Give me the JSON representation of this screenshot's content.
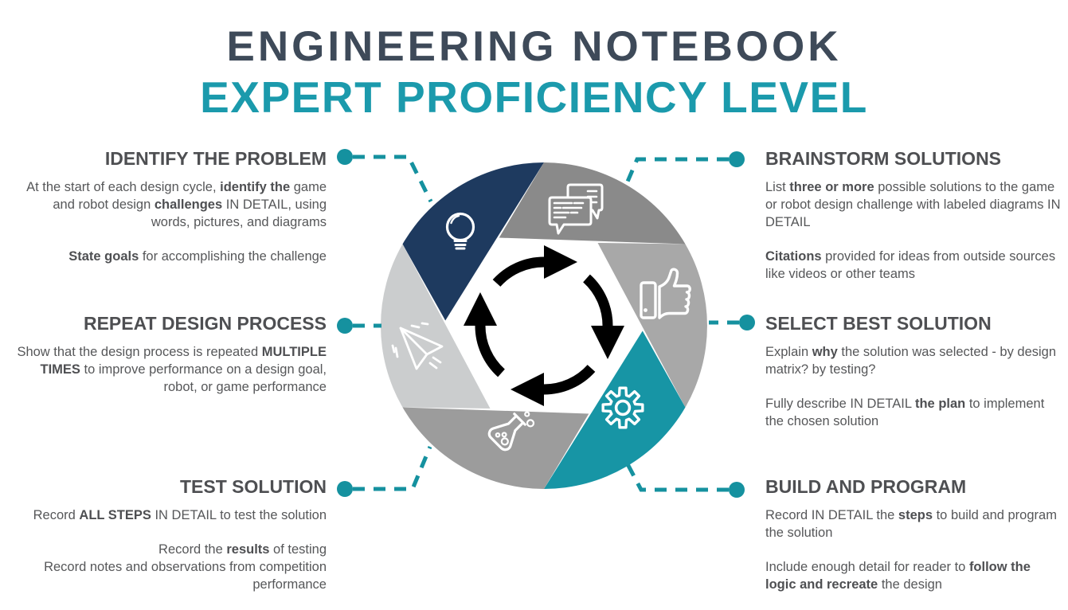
{
  "title": {
    "line1": "ENGINEERING NOTEBOOK",
    "line2": "EXPERT PROFICIENCY LEVEL"
  },
  "colors": {
    "title_primary": "#3e4a59",
    "title_accent": "#1b9aac",
    "heading_text": "#4e4f52",
    "body_text": "#565759",
    "connector_teal": "#15919f",
    "cycle_arrows": "#000000",
    "icon_stroke": "#ffffff",
    "blade_identify": "#1e3a5f",
    "blade_brainstorm": "#8a8a8a",
    "blade_select": "#a8a8a8",
    "blade_build": "#1795a5",
    "blade_test": "#9c9c9c",
    "blade_repeat": "#cbcdce"
  },
  "sections": [
    {
      "id": "identify-the-problem",
      "title": "IDENTIFY THE PROBLEM",
      "paragraphs": [
        [
          {
            "t": "At the start of each design cycle, "
          },
          {
            "t": "identify the",
            "b": true
          },
          {
            "t": " game and robot design "
          },
          {
            "t": "challenges",
            "b": true
          },
          {
            "t": " IN DETAIL, using words, pictures, and diagrams"
          }
        ],
        [
          {
            "t": "State goals",
            "b": true
          },
          {
            "t": " for accomplishing the challenge"
          }
        ]
      ]
    },
    {
      "id": "brainstorm-solutions",
      "title": "BRAINSTORM SOLUTIONS",
      "paragraphs": [
        [
          {
            "t": "List "
          },
          {
            "t": "three or more",
            "b": true
          },
          {
            "t": " possible solutions to the game or robot design challenge with labeled diagrams IN DETAIL"
          }
        ],
        [
          {
            "t": "Citations",
            "b": true
          },
          {
            "t": " provided for ideas from outside sources like videos or other teams"
          }
        ]
      ]
    },
    {
      "id": "repeat-design-process",
      "title": "REPEAT DESIGN PROCESS",
      "paragraphs": [
        [
          {
            "t": "Show that the design process is repeated "
          },
          {
            "t": "MULTIPLE TIMES",
            "b": true
          },
          {
            "t": " to improve performance on a design goal, robot, or game performance"
          }
        ]
      ]
    },
    {
      "id": "select-best-solution",
      "title": "SELECT BEST SOLUTION",
      "paragraphs": [
        [
          {
            "t": "Explain "
          },
          {
            "t": "why",
            "b": true
          },
          {
            "t": " the solution was selected - by design matrix?  by testing?"
          }
        ],
        [
          {
            "t": "Fully describe IN DETAIL "
          },
          {
            "t": "the plan",
            "b": true
          },
          {
            "t": " to implement the chosen solution"
          }
        ]
      ]
    },
    {
      "id": "test-solution",
      "title": "TEST SOLUTION",
      "paragraphs": [
        [
          {
            "t": "Record "
          },
          {
            "t": "ALL STEPS",
            "b": true
          },
          {
            "t": " IN DETAIL to test the solution"
          }
        ],
        [
          {
            "t": "Record the "
          },
          {
            "t": "results",
            "b": true
          },
          {
            "t": " of testing"
          },
          {
            "br": true
          },
          {
            "t": "Record notes and observations from competition performance"
          }
        ]
      ]
    },
    {
      "id": "build-and-program",
      "title": "BUILD AND PROGRAM",
      "paragraphs": [
        [
          {
            "t": "Record IN DETAIL the "
          },
          {
            "t": "steps",
            "b": true
          },
          {
            "t": " to build and program the solution"
          }
        ],
        [
          {
            "t": "Include enough detail for reader to "
          },
          {
            "t": "follow the logic and recreate",
            "b": true
          },
          {
            "t": " the design"
          }
        ]
      ]
    }
  ],
  "diagram": {
    "segments": [
      {
        "section": "identify-the-problem",
        "icon": "lightbulb-icon",
        "color": "#1e3a5f"
      },
      {
        "section": "brainstorm-solutions",
        "icon": "chat-bubbles-icon",
        "color": "#8a8a8a"
      },
      {
        "section": "select-best-solution",
        "icon": "thumbs-up-icon",
        "color": "#a8a8a8"
      },
      {
        "section": "build-and-program",
        "icon": "gear-icon",
        "color": "#1795a5"
      },
      {
        "section": "test-solution",
        "icon": "flask-icon",
        "color": "#9c9c9c"
      },
      {
        "section": "repeat-design-process",
        "icon": "paper-plane-icon",
        "color": "#cbcdce"
      }
    ],
    "center_icon": "cycle-arrows-icon"
  }
}
